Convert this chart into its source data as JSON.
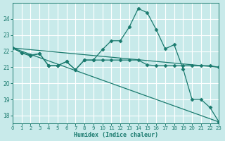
{
  "xlabel": "Humidex (Indice chaleur)",
  "xlim": [
    0,
    23
  ],
  "ylim": [
    17.5,
    25.0
  ],
  "yticks": [
    18,
    19,
    20,
    21,
    22,
    23,
    24
  ],
  "xticks": [
    0,
    1,
    2,
    3,
    4,
    5,
    6,
    7,
    8,
    9,
    10,
    11,
    12,
    13,
    14,
    15,
    16,
    17,
    18,
    19,
    20,
    21,
    22,
    23
  ],
  "background_color": "#c8eaea",
  "grid_color": "#d8f0f0",
  "line_color": "#1a7a6e",
  "lines": [
    {
      "x": [
        0,
        1,
        2,
        3,
        4,
        5,
        6,
        7,
        8,
        9,
        10,
        11,
        12,
        13,
        14,
        15,
        16,
        17,
        18,
        19,
        20,
        21,
        22,
        23
      ],
      "y": [
        22.2,
        21.9,
        21.7,
        21.85,
        21.1,
        21.1,
        21.35,
        20.85,
        21.45,
        21.45,
        22.1,
        22.65,
        22.65,
        23.5,
        24.65,
        24.4,
        23.35,
        22.15,
        22.4,
        20.9,
        19.0,
        19.0,
        18.5,
        17.6
      ],
      "marker": "D",
      "markersize": 2.5,
      "lw": 0.9
    },
    {
      "x": [
        0,
        1,
        2,
        3,
        4,
        5,
        6,
        7,
        8,
        9,
        10,
        11,
        12,
        13,
        14,
        15,
        16,
        17,
        18,
        19,
        20,
        21,
        22,
        23
      ],
      "y": [
        22.2,
        21.9,
        21.75,
        21.85,
        21.1,
        21.1,
        21.35,
        20.85,
        21.45,
        21.45,
        21.45,
        21.45,
        21.45,
        21.45,
        21.45,
        21.15,
        21.1,
        21.1,
        21.1,
        21.1,
        21.1,
        21.1,
        21.1,
        21.0
      ],
      "marker": "D",
      "markersize": 2.5,
      "lw": 0.9
    },
    {
      "x": [
        0,
        23
      ],
      "y": [
        22.2,
        21.0
      ],
      "marker": null,
      "markersize": 0,
      "lw": 0.9
    },
    {
      "x": [
        0,
        23
      ],
      "y": [
        22.2,
        17.6
      ],
      "marker": null,
      "markersize": 0,
      "lw": 0.9
    }
  ]
}
